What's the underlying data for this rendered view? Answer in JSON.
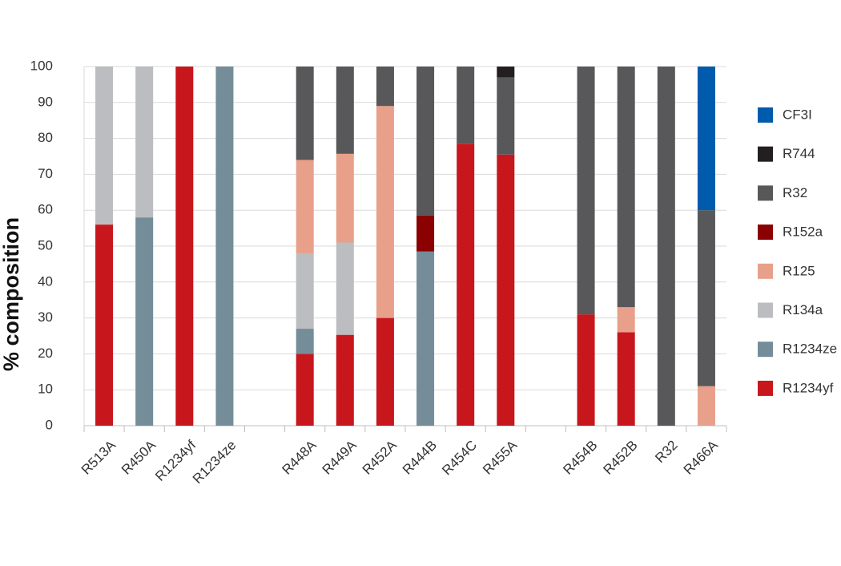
{
  "chart_data": {
    "type": "stacked_bar",
    "y_label": "% composition",
    "categories": [
      "R513A",
      "R450A",
      "R1234yf",
      "R1234ze",
      null,
      "R448A",
      "R449A",
      "R452A",
      "R444B",
      "R454C",
      "R455A",
      null,
      "R454B",
      "R452B",
      "R32",
      "R466A"
    ],
    "series": [
      {
        "name": "R1234yf",
        "color": "#c8161d",
        "values": [
          56,
          null,
          100,
          null,
          null,
          20,
          25.3,
          30,
          null,
          78.5,
          75.5,
          null,
          31,
          26,
          null,
          null
        ]
      },
      {
        "name": "R1234ze",
        "color": "#758d99",
        "values": [
          null,
          58,
          null,
          100,
          null,
          7,
          null,
          null,
          48.5,
          null,
          null,
          null,
          null,
          null,
          null,
          null
        ]
      },
      {
        "name": "R134a",
        "color": "#bcbdc0",
        "values": [
          44,
          42,
          null,
          null,
          null,
          21,
          25.7,
          null,
          null,
          null,
          null,
          null,
          null,
          null,
          null,
          null
        ]
      },
      {
        "name": "R125",
        "color": "#e8a08a",
        "values": [
          null,
          null,
          null,
          null,
          null,
          26,
          24.7,
          59,
          null,
          null,
          null,
          null,
          null,
          7,
          null,
          11
        ]
      },
      {
        "name": "R152a",
        "color": "#8b0000",
        "values": [
          null,
          null,
          null,
          null,
          null,
          null,
          null,
          null,
          10,
          null,
          null,
          null,
          null,
          null,
          null,
          null
        ]
      },
      {
        "name": "R32",
        "color": "#58585a",
        "values": [
          null,
          null,
          null,
          null,
          null,
          26,
          24.3,
          11,
          41.5,
          21.5,
          21.5,
          null,
          69,
          67,
          100,
          49
        ]
      },
      {
        "name": "R744",
        "color": "#231f20",
        "values": [
          null,
          null,
          null,
          null,
          null,
          null,
          null,
          null,
          null,
          null,
          3,
          null,
          null,
          null,
          null,
          null
        ]
      },
      {
        "name": "CF3I",
        "color": "#005bac",
        "values": [
          null,
          null,
          null,
          null,
          null,
          null,
          null,
          null,
          null,
          null,
          null,
          null,
          null,
          null,
          null,
          40
        ]
      }
    ],
    "ylim": [
      0,
      100
    ],
    "yticks": [
      0,
      10,
      20,
      30,
      40,
      50,
      60,
      70,
      80,
      90,
      100
    ],
    "grid": true,
    "legend": "right"
  }
}
